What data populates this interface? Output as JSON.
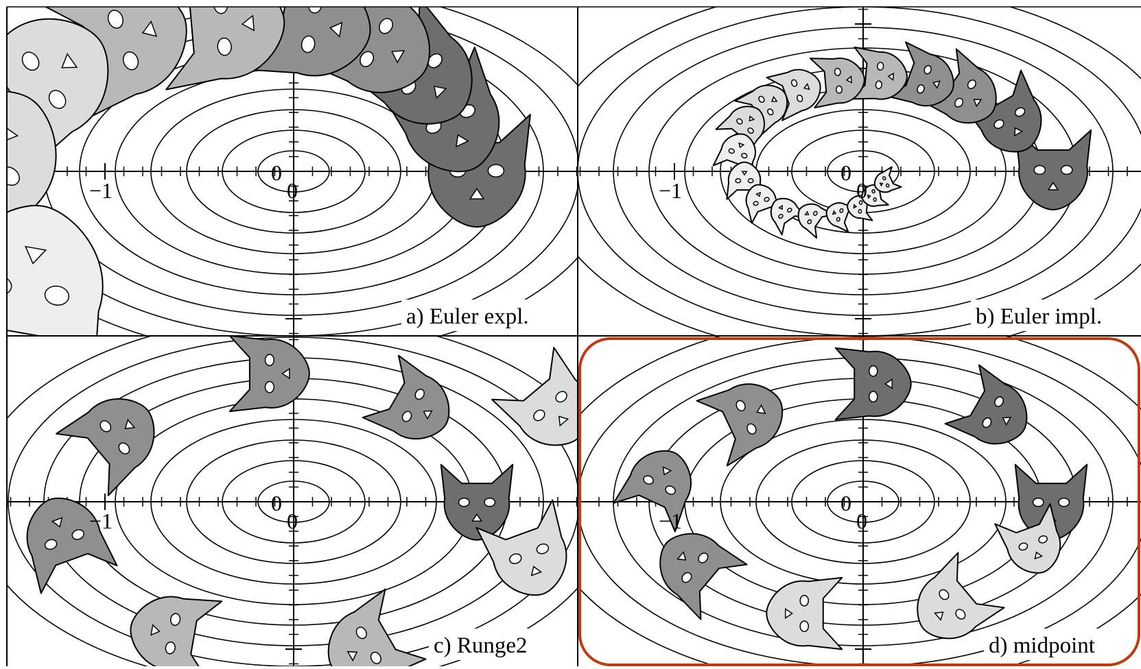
{
  "colors": {
    "background": "#ffffff",
    "line": "#000000",
    "highlight": "#c23a12",
    "cat_dark": "#6e6e6e",
    "cat_mid": "#8f8f8f",
    "cat_light": "#b8b8b8",
    "cat_pale": "#dcdcdc",
    "cat_white": "#eeeeee"
  },
  "panels": [
    {
      "id": "a",
      "caption": "a) Euler expl.",
      "tick_label_neg": "−1",
      "origin_label_x": "0",
      "origin_label_y": "0",
      "highlighted": false
    },
    {
      "id": "b",
      "caption": "b) Euler impl.",
      "tick_label_neg": "−1",
      "origin_label_x": "0",
      "origin_label_y": "0",
      "highlighted": false
    },
    {
      "id": "c",
      "caption": "c) Runge2",
      "tick_label_neg": "−1",
      "origin_label_x": "0",
      "origin_label_y": "0",
      "highlighted": false
    },
    {
      "id": "d",
      "caption": "d) midpoint",
      "tick_label_neg": "−1",
      "origin_label_x": "0",
      "origin_label_y": "0",
      "highlighted": true
    }
  ]
}
